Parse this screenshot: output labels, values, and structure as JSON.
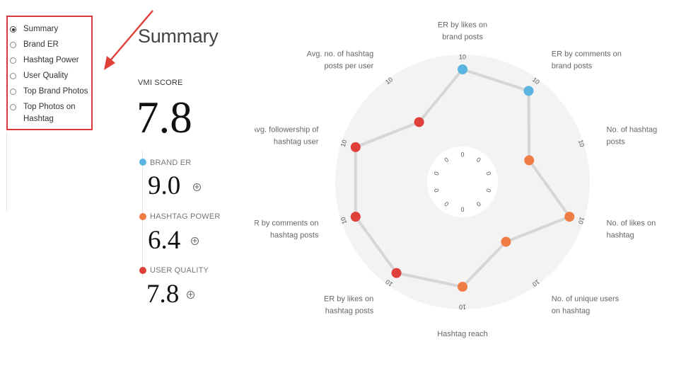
{
  "nav": {
    "items": [
      {
        "label": "Summary",
        "selected": true
      },
      {
        "label": "Brand ER",
        "selected": false
      },
      {
        "label": "Hashtag Power",
        "selected": false
      },
      {
        "label": "User Quality",
        "selected": false
      },
      {
        "label": "Top Brand Photos",
        "selected": false
      },
      {
        "label": "Top Photos on Hashtag",
        "selected": false
      }
    ]
  },
  "summary": {
    "title": "Summary",
    "vmi_label": "VMI SCORE",
    "vmi_value": "7.8",
    "metrics": [
      {
        "label": "BRAND ER",
        "value": "9.0",
        "color": "#5ab4df"
      },
      {
        "label": "HASHTAG POWER",
        "value": "6.4",
        "color": "#ef7b45"
      },
      {
        "label": "USER QUALITY",
        "value": "7.8",
        "color": "#e0403a"
      }
    ]
  },
  "colors": {
    "highlight_border": "#d9363e",
    "brand": "#5ab4df",
    "hashtag": "#ef7b45",
    "user": "#e0403a",
    "radar_background": "#f3f3f3",
    "radar_line": "#d6d6d6"
  },
  "chart_data": {
    "type": "radar",
    "axes": [
      {
        "label": [
          "ER by likes on",
          "brand posts"
        ],
        "value": 10,
        "color": "#5ab4df",
        "inner_tick": "0",
        "outer_tick": "10"
      },
      {
        "label": [
          "ER by comments on",
          "brand posts"
        ],
        "value": 10,
        "color": "#5ab4df",
        "inner_tick": "0",
        "outer_tick": "10"
      },
      {
        "label": [
          "No. of hashtag",
          "posts"
        ],
        "value": 4.5,
        "color": "#ef7b45",
        "inner_tick": "0",
        "outer_tick": "10"
      },
      {
        "label": [
          "No. of likes on",
          "hashtag"
        ],
        "value": 10,
        "color": "#ef7b45",
        "inner_tick": "0",
        "outer_tick": "10"
      },
      {
        "label": [
          "No. of unique users",
          "on hashtag"
        ],
        "value": 5,
        "color": "#ef7b45",
        "inner_tick": "0",
        "outer_tick": "10"
      },
      {
        "label": [
          "Hashtag reach"
        ],
        "value": 9,
        "color": "#ef7b45",
        "inner_tick": "0",
        "outer_tick": "10"
      },
      {
        "label": [
          "ER by likes on",
          "hashtag posts"
        ],
        "value": 10,
        "color": "#e0403a",
        "inner_tick": "0",
        "outer_tick": "10"
      },
      {
        "label": [
          "ER by comments on",
          "hashtag posts"
        ],
        "value": 10,
        "color": "#e0403a",
        "inner_tick": "0",
        "outer_tick": "10"
      },
      {
        "label": [
          "Avg. followership of",
          "hashtag user"
        ],
        "value": 10,
        "color": "#e0403a",
        "inner_tick": "0",
        "outer_tick": "10"
      },
      {
        "label": [
          "Avg. no. of hashtag",
          "posts per user"
        ],
        "value": 5,
        "color": "#e0403a",
        "inner_tick": "0",
        "outer_tick": "10"
      }
    ],
    "range": [
      0,
      10
    ]
  }
}
